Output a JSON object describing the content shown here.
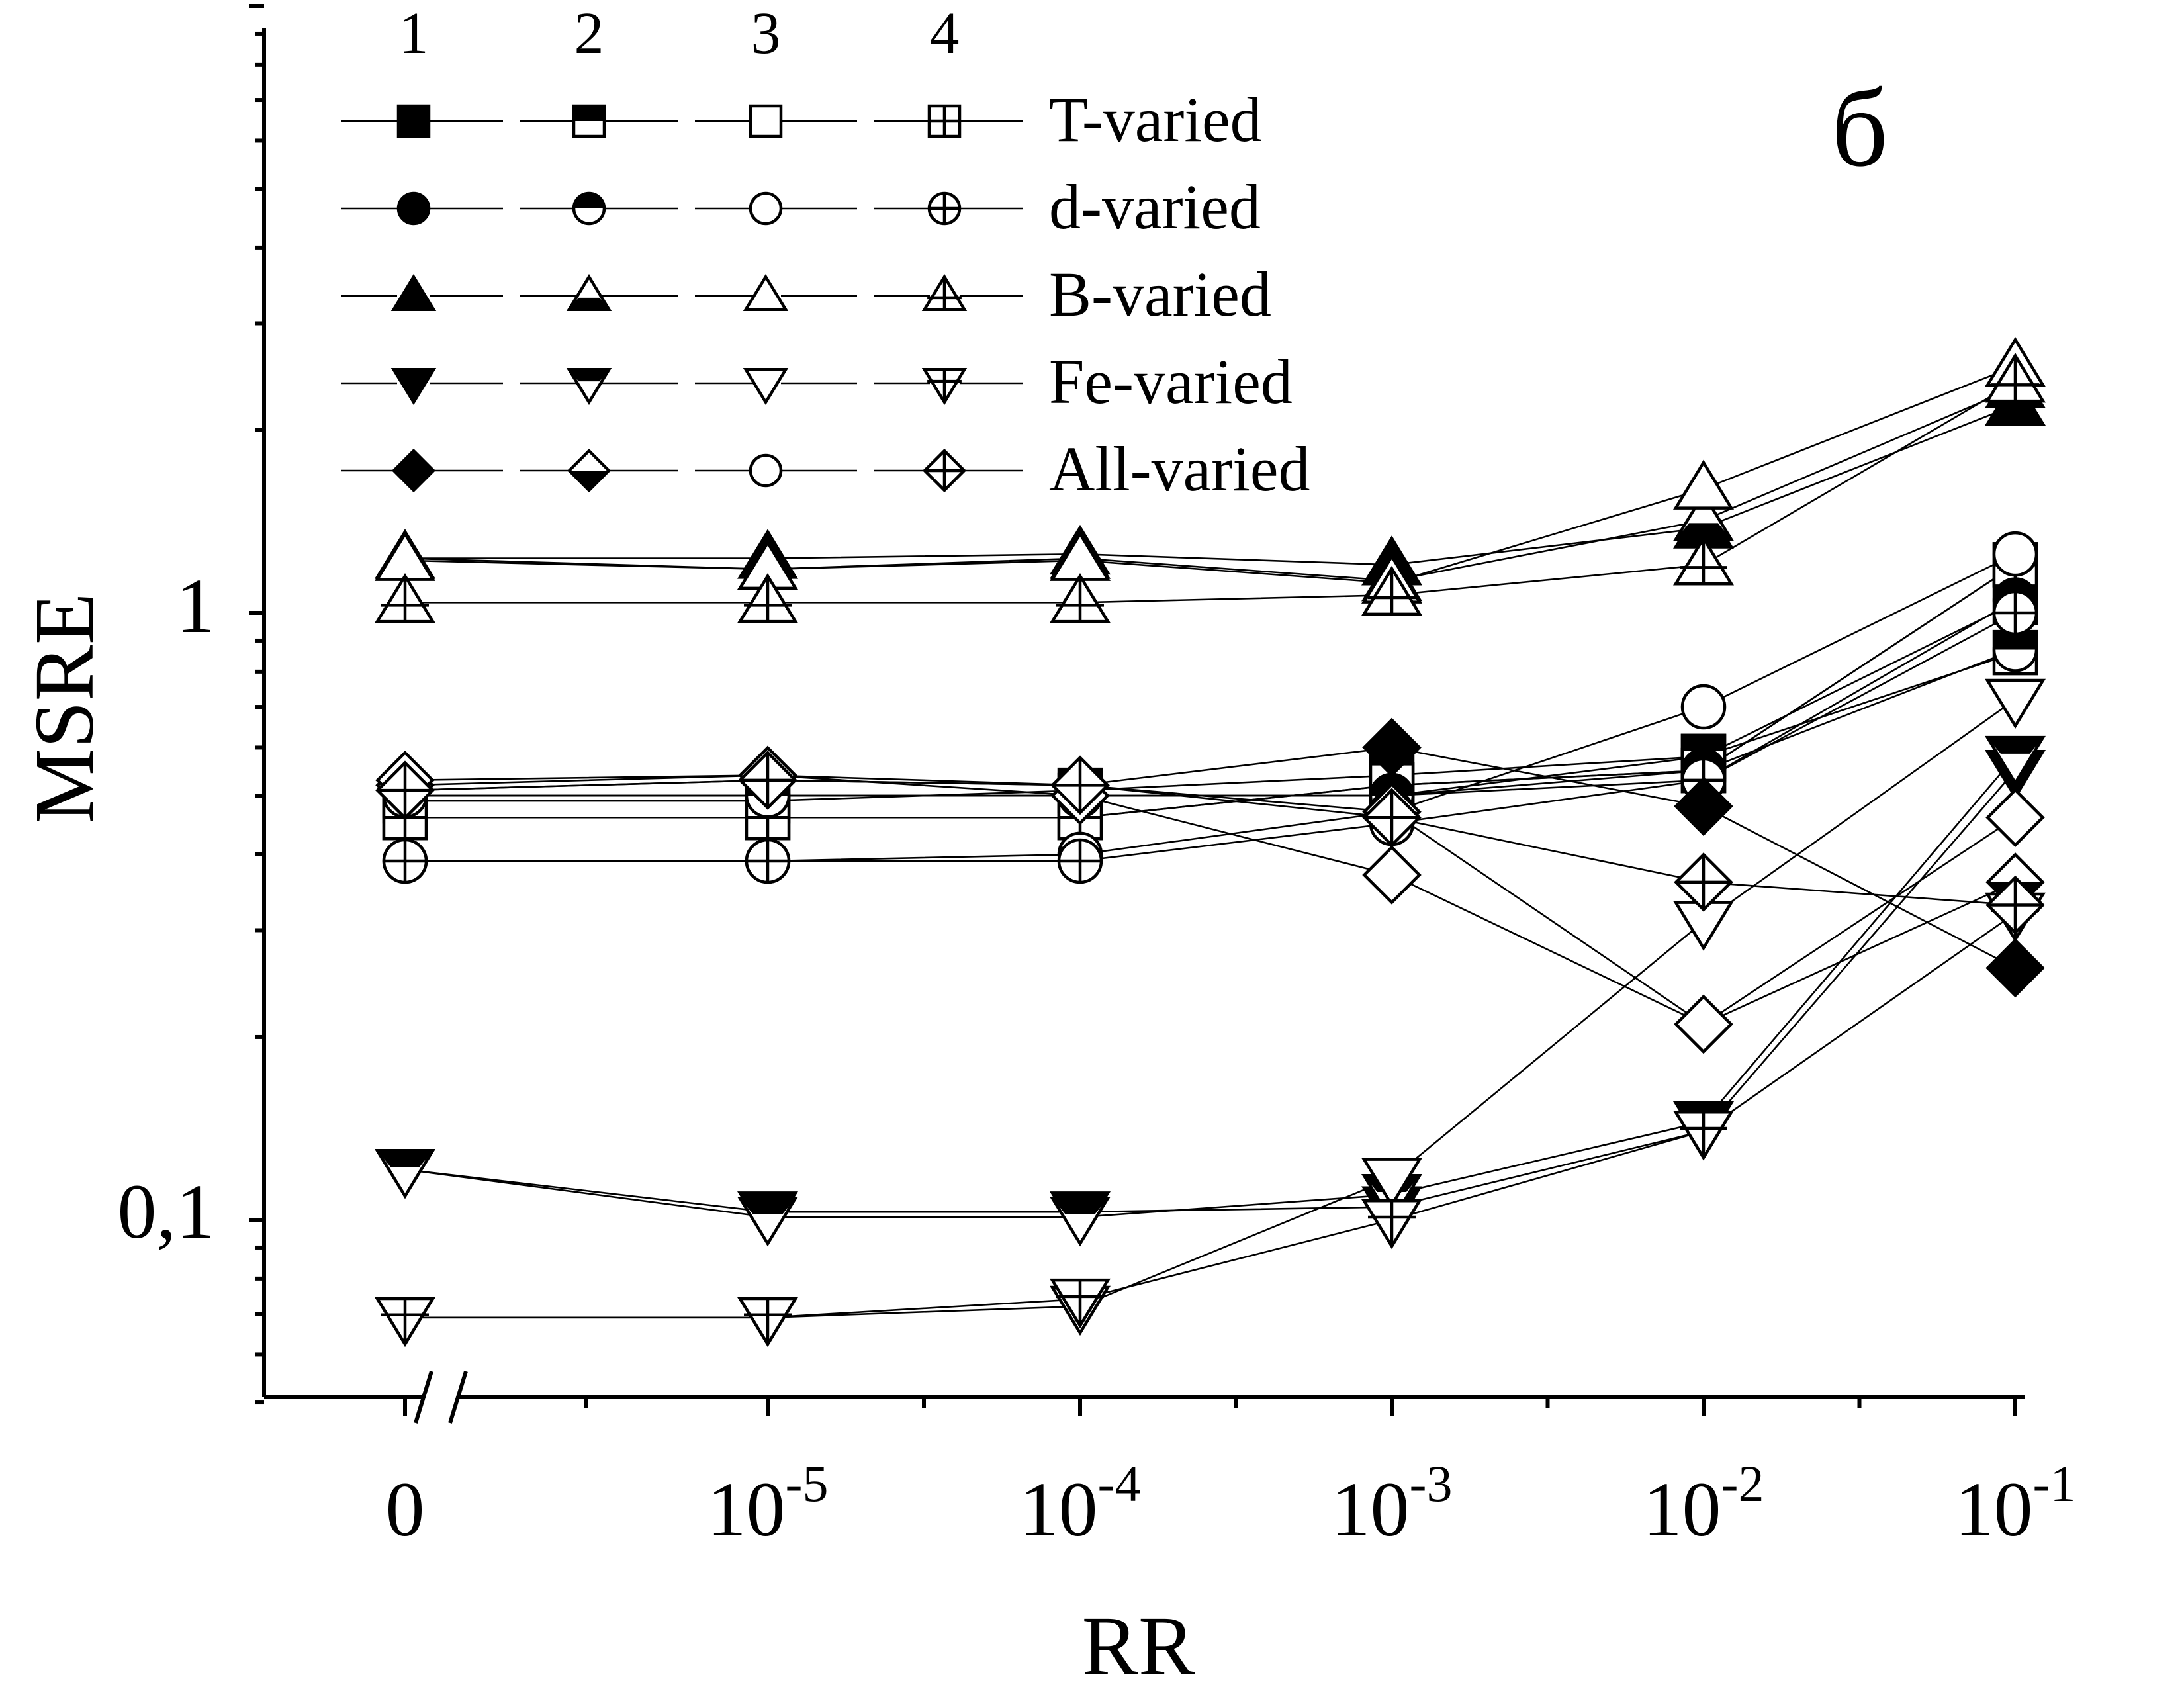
{
  "chart_data": {
    "type": "line",
    "title": "",
    "panel_label": "б",
    "xlabel": "RR",
    "ylabel": "MSRE",
    "y_scale": "log",
    "ylim": [
      0.05,
      10
    ],
    "y_ticks": [
      {
        "value": 0.1,
        "label": "0,1"
      },
      {
        "value": 1,
        "label": "1"
      }
    ],
    "x": [
      0,
      1e-05,
      0.0001,
      0.001,
      0.01,
      0.1
    ],
    "x_ticks": [
      {
        "base": "0",
        "exp": ""
      },
      {
        "base": "10",
        "exp": "-5"
      },
      {
        "base": "10",
        "exp": "-4"
      },
      {
        "base": "10",
        "exp": "-3"
      },
      {
        "base": "10",
        "exp": "-2"
      },
      {
        "base": "10",
        "exp": "-1"
      }
    ],
    "x_axis_break": true,
    "legend": {
      "placement": "top-left",
      "columns": [
        "1",
        "2",
        "3",
        "4"
      ],
      "rows": [
        {
          "label": "T-varied",
          "shape": "square"
        },
        {
          "label": "d-varied",
          "shape": "circle"
        },
        {
          "label": "B-varied",
          "shape": "triangle-up"
        },
        {
          "label": "Fe-varied",
          "shape": "triangle-down"
        },
        {
          "label": "All-varied",
          "shape": "diamond"
        }
      ],
      "column_fills": [
        "filled",
        "half",
        "open",
        "cross"
      ]
    },
    "series": [
      {
        "name": "T-varied",
        "column": "1",
        "shape": "square",
        "fill": "filled",
        "values": [
          0.5,
          0.5,
          0.5,
          0.5,
          0.58,
          1.04
        ]
      },
      {
        "name": "T-varied",
        "column": "2",
        "shape": "square",
        "fill": "half",
        "values": [
          0.49,
          0.49,
          0.51,
          0.54,
          0.58,
          0.86
        ]
      },
      {
        "name": "T-varied",
        "column": "3",
        "shape": "square",
        "fill": "open",
        "values": [
          0.46,
          0.46,
          0.46,
          0.52,
          0.55,
          1.2
        ]
      },
      {
        "name": "T-varied",
        "column": "4",
        "shape": "square",
        "fill": "cross",
        "values": [
          0.46,
          0.46,
          0.46,
          0.52,
          0.55,
          1.2
        ]
      },
      {
        "name": "d-varied",
        "column": "1",
        "shape": "circle",
        "fill": "filled",
        "values": [
          0.5,
          0.5,
          0.5,
          0.5,
          0.53,
          1.05
        ]
      },
      {
        "name": "d-varied",
        "column": "2",
        "shape": "circle",
        "fill": "half",
        "values": [
          0.5,
          0.5,
          0.5,
          0.5,
          0.55,
          0.87
        ]
      },
      {
        "name": "d-varied",
        "column": "3",
        "shape": "circle",
        "fill": "open",
        "values": [
          0.39,
          0.39,
          0.4,
          0.47,
          0.7,
          1.25
        ]
      },
      {
        "name": "d-varied",
        "column": "4",
        "shape": "circle",
        "fill": "cross",
        "values": [
          0.39,
          0.39,
          0.39,
          0.45,
          0.53,
          1.0
        ]
      },
      {
        "name": "B-varied",
        "column": "1",
        "shape": "triangle-up",
        "fill": "filled",
        "values": [
          1.23,
          1.23,
          1.25,
          1.2,
          1.38,
          2.2
        ]
      },
      {
        "name": "B-varied",
        "column": "2",
        "shape": "triangle-up",
        "fill": "half",
        "values": [
          1.23,
          1.18,
          1.23,
          1.13,
          1.42,
          2.35
        ]
      },
      {
        "name": "B-varied",
        "column": "3",
        "shape": "triangle-up",
        "fill": "open",
        "values": [
          1.22,
          1.18,
          1.22,
          1.12,
          1.6,
          2.55
        ]
      },
      {
        "name": "B-varied",
        "column": "4",
        "shape": "triangle-up",
        "fill": "cross",
        "values": [
          1.04,
          1.04,
          1.04,
          1.07,
          1.2,
          2.4
        ]
      },
      {
        "name": "Fe-varied",
        "column": "1",
        "shape": "triangle-down",
        "fill": "filled",
        "values": [
          0.121,
          0.103,
          0.103,
          0.105,
          0.14,
          0.55
        ]
      },
      {
        "name": "Fe-varied",
        "column": "2",
        "shape": "triangle-down",
        "fill": "half",
        "values": [
          0.121,
          0.101,
          0.101,
          0.11,
          0.145,
          0.58
        ]
      },
      {
        "name": "Fe-varied",
        "column": "3",
        "shape": "triangle-down",
        "fill": "open",
        "values": [
          0.069,
          0.069,
          0.072,
          0.117,
          0.31,
          0.72
        ]
      },
      {
        "name": "Fe-varied",
        "column": "4",
        "shape": "triangle-down",
        "fill": "cross",
        "values": [
          0.069,
          0.069,
          0.074,
          0.1,
          0.14,
          0.32
        ]
      },
      {
        "name": "All-varied",
        "column": "1",
        "shape": "diamond",
        "fill": "filled",
        "values": [
          0.51,
          0.53,
          0.52,
          0.6,
          0.48,
          0.26
        ]
      },
      {
        "name": "All-varied",
        "column": "2",
        "shape": "diamond",
        "fill": "half",
        "values": [
          0.52,
          0.54,
          0.52,
          0.47,
          0.21,
          0.36
        ]
      },
      {
        "name": "All-varied",
        "column": "3",
        "shape": "diamond",
        "fill": "open",
        "values": [
          0.53,
          0.54,
          0.5,
          0.37,
          0.21,
          0.46
        ]
      },
      {
        "name": "All-varied",
        "column": "4",
        "shape": "diamond",
        "fill": "cross",
        "values": [
          0.51,
          0.53,
          0.52,
          0.46,
          0.36,
          0.33
        ]
      }
    ]
  }
}
